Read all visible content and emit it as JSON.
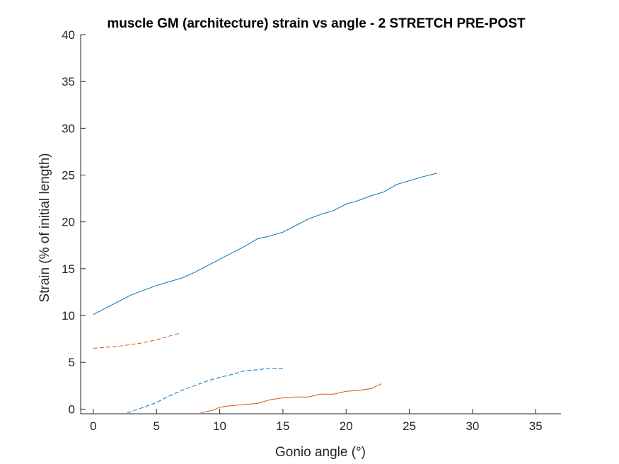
{
  "chart_data": {
    "type": "line",
    "title": "muscle GM (architecture) strain vs angle - 2 STRETCH PRE-POST",
    "xlabel": "Gonio angle (°)",
    "ylabel": "Strain (% of initial length)",
    "xlim": [
      -1,
      37
    ],
    "ylim": [
      -0.5,
      40
    ],
    "xticks": [
      0,
      5,
      10,
      15,
      20,
      25,
      30,
      35
    ],
    "yticks": [
      0,
      5,
      10,
      15,
      20,
      25,
      30,
      35,
      40
    ],
    "grid": false,
    "legend": "none",
    "axis_color": "#262626",
    "series": [
      {
        "color": "#0072BD",
        "style": "solid",
        "x": [
          0,
          1,
          2,
          3,
          4,
          5,
          6,
          7,
          8,
          9,
          10,
          11,
          12,
          13,
          14,
          15,
          16,
          17,
          18,
          19,
          20,
          21,
          22,
          23,
          24,
          25,
          26,
          27.2
        ],
        "y": [
          10.1,
          10.8,
          11.5,
          12.2,
          12.7,
          13.2,
          13.6,
          14.0,
          14.6,
          15.3,
          16.0,
          16.7,
          17.4,
          18.2,
          18.5,
          18.9,
          19.6,
          20.3,
          20.8,
          21.2,
          21.9,
          22.3,
          22.8,
          23.2,
          24.0,
          24.4,
          24.8,
          25.2
        ]
      },
      {
        "color": "#D95319",
        "style": "dashed",
        "x": [
          0,
          1,
          2,
          3,
          4,
          5,
          6,
          6.8
        ],
        "y": [
          6.5,
          6.6,
          6.7,
          6.9,
          7.1,
          7.4,
          7.8,
          8.1
        ]
      },
      {
        "color": "#0072BD",
        "style": "dashed",
        "x": [
          2.7,
          4,
          5,
          6,
          7,
          8,
          9,
          10,
          11,
          12,
          13,
          14,
          15
        ],
        "y": [
          -0.4,
          0.2,
          0.7,
          1.4,
          2.0,
          2.5,
          3.0,
          3.4,
          3.7,
          4.1,
          4.2,
          4.4,
          4.3
        ]
      },
      {
        "color": "#D95319",
        "style": "solid",
        "x": [
          8.5,
          9.5,
          10,
          10.5,
          12,
          13,
          14,
          15,
          16,
          17,
          18,
          18.5,
          19,
          20,
          21,
          22,
          22.8
        ],
        "y": [
          -0.4,
          -0.1,
          0.2,
          0.3,
          0.5,
          0.6,
          1.0,
          1.2,
          1.3,
          1.3,
          1.6,
          1.6,
          1.6,
          1.9,
          2.0,
          2.2,
          2.7
        ]
      }
    ]
  }
}
